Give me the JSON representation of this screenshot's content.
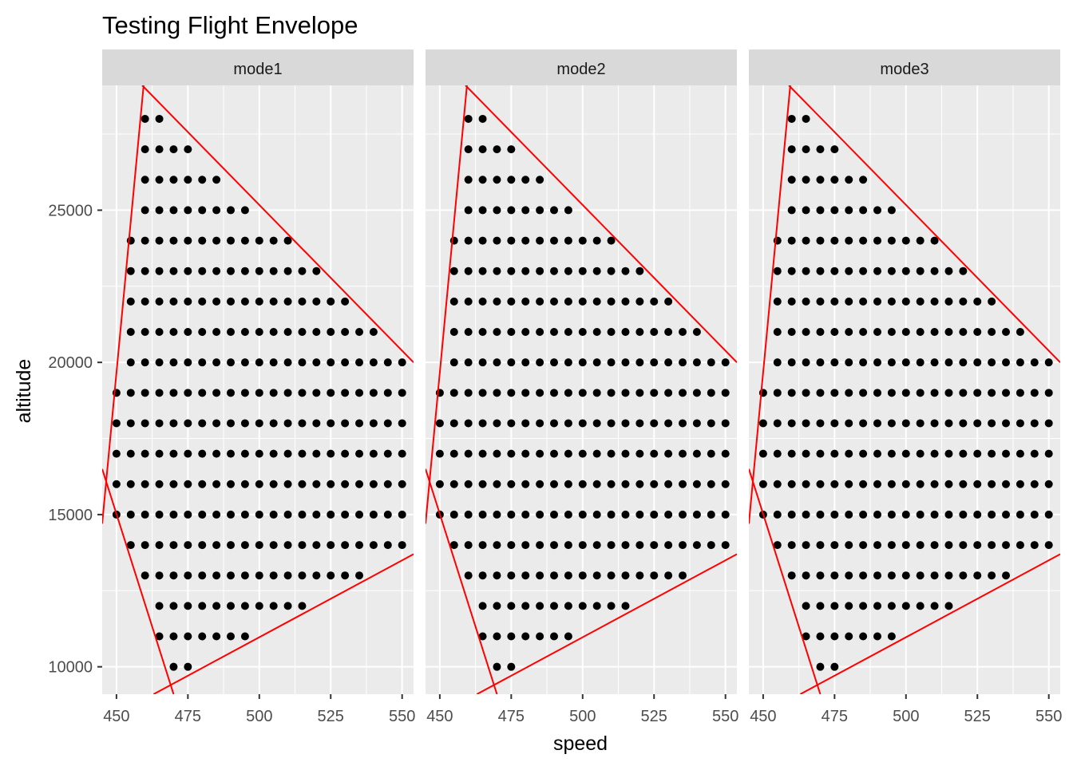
{
  "chart_data": {
    "type": "scatter",
    "title": "Testing Flight Envelope",
    "xlabel": "speed",
    "ylabel": "altitude",
    "xlim": [
      445,
      554
    ],
    "ylim": [
      9100,
      29100
    ],
    "x_ticks": [
      450,
      475,
      500,
      525,
      550
    ],
    "y_ticks": [
      10000,
      15000,
      20000,
      25000
    ],
    "grid": true,
    "facets": [
      "mode1",
      "mode2",
      "mode3"
    ],
    "point_color": "#000000",
    "line_color": "#ff0000",
    "panel_bg": "#ebebeb",
    "strip_bg": "#d9d9d9",
    "grid_color": "#ffffff",
    "rows": [
      {
        "altitude": 10000,
        "speed_min": 470,
        "speed_max": 475
      },
      {
        "altitude": 11000,
        "speed_min": 465,
        "speed_max": 495
      },
      {
        "altitude": 12000,
        "speed_min": 465,
        "speed_max": 515
      },
      {
        "altitude": 13000,
        "speed_min": 460,
        "speed_max": 535
      },
      {
        "altitude": 14000,
        "speed_min": 455,
        "speed_max": 550
      },
      {
        "altitude": 15000,
        "speed_min": 450,
        "speed_max": 550
      },
      {
        "altitude": 16000,
        "speed_min": 450,
        "speed_max": 550
      },
      {
        "altitude": 17000,
        "speed_min": 450,
        "speed_max": 550
      },
      {
        "altitude": 18000,
        "speed_min": 450,
        "speed_max": 550
      },
      {
        "altitude": 19000,
        "speed_min": 450,
        "speed_max": 550
      },
      {
        "altitude": 20000,
        "speed_min": 455,
        "speed_max": 550
      },
      {
        "altitude": 21000,
        "speed_min": 455,
        "speed_max": 540
      },
      {
        "altitude": 22000,
        "speed_min": 455,
        "speed_max": 530
      },
      {
        "altitude": 23000,
        "speed_min": 455,
        "speed_max": 520
      },
      {
        "altitude": 24000,
        "speed_min": 455,
        "speed_max": 510
      },
      {
        "altitude": 25000,
        "speed_min": 460,
        "speed_max": 495
      },
      {
        "altitude": 26000,
        "speed_min": 460,
        "speed_max": 485
      },
      {
        "altitude": 27000,
        "speed_min": 460,
        "speed_max": 475
      },
      {
        "altitude": 28000,
        "speed_min": 460,
        "speed_max": 465
      }
    ],
    "boundary_lines": [
      {
        "from": [
          445,
          14700
        ],
        "to": [
          459.5,
          29100
        ]
      },
      {
        "from": [
          445,
          16500
        ],
        "to": [
          470,
          9100
        ]
      },
      {
        "from": [
          459,
          29100
        ],
        "to": [
          554,
          20000
        ]
      },
      {
        "from": [
          463,
          9100
        ],
        "to": [
          554,
          13700
        ]
      }
    ]
  }
}
